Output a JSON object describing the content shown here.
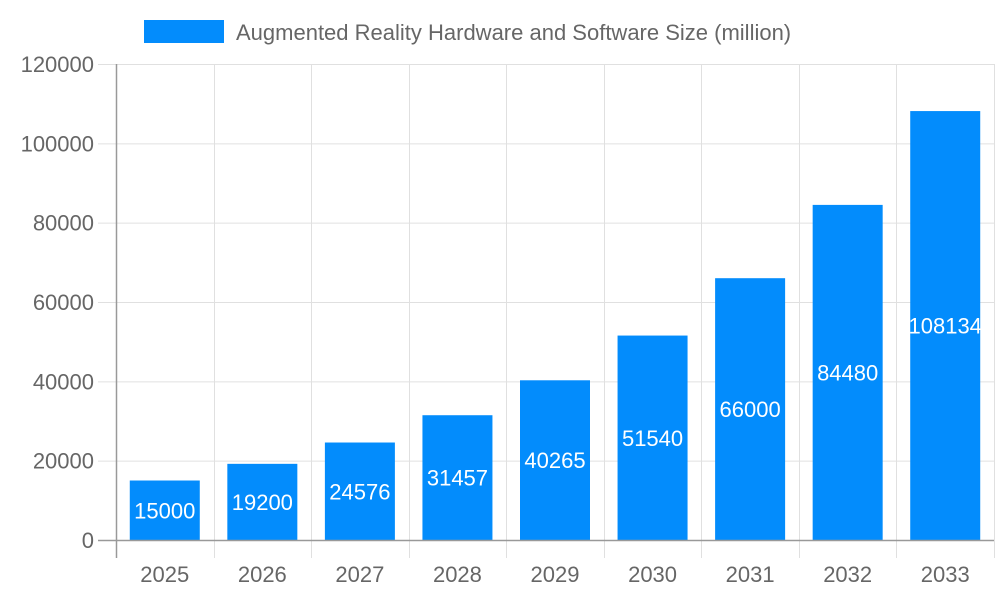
{
  "chart_data": {
    "type": "bar",
    "title": "",
    "xlabel": "",
    "ylabel": "",
    "categories": [
      "2025",
      "2026",
      "2027",
      "2028",
      "2029",
      "2030",
      "2031",
      "2032",
      "2033"
    ],
    "series": [
      {
        "name": "Augmented Reality Hardware and Software Size (million)",
        "values": [
          15000,
          19200,
          24576,
          31457,
          40265,
          51540,
          66000,
          84480,
          108134
        ],
        "color": "#038cfc"
      }
    ],
    "ylim": [
      0,
      120000
    ],
    "yticks": [
      0,
      20000,
      40000,
      60000,
      80000,
      100000,
      120000
    ],
    "grid": true,
    "legend": "top",
    "data_labels": true
  }
}
